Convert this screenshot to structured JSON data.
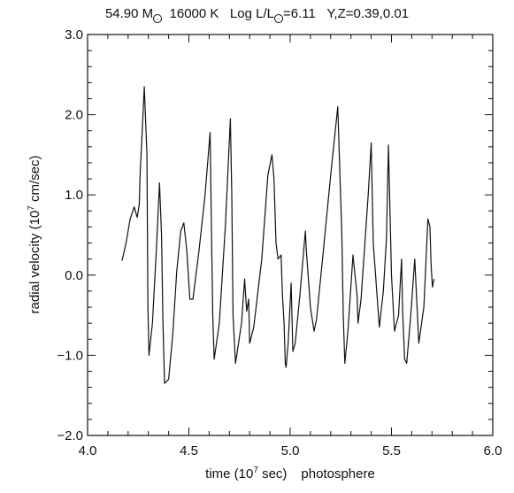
{
  "chart_data": {
    "type": "line",
    "title": {
      "mass": "54.90",
      "mass_symbol": "M",
      "temperature": "16000 K",
      "lum_prefix": "Log L/L",
      "lum_value": "=6.11",
      "composition": "Y,Z=0.39,0.01"
    },
    "xlabel": {
      "main": "time (10",
      "exp": "7",
      "unit": " sec)",
      "suffix": "photosphere"
    },
    "ylabel": {
      "main": "radial velocity (10",
      "exp": "7",
      "unit": " cm/sec)"
    },
    "xlim": [
      4.0,
      6.0
    ],
    "ylim": [
      -2.0,
      3.0
    ],
    "x_ticks": [
      "4.0",
      "4.5",
      "5.0",
      "5.5",
      "6.0"
    ],
    "y_ticks": [
      "3.0",
      "2.0",
      "1.0",
      "0.0",
      "−1.0",
      "−2.0"
    ],
    "grid": false,
    "series": [
      {
        "color": "#111111",
        "x": [
          4.17,
          4.19,
          4.21,
          4.23,
          4.245,
          4.255,
          4.26,
          4.265,
          4.28,
          4.293,
          4.298,
          4.303,
          4.32,
          4.34,
          4.355,
          4.365,
          4.372,
          4.38,
          4.4,
          4.42,
          4.44,
          4.46,
          4.475,
          4.49,
          4.505,
          4.52,
          4.55,
          4.58,
          4.605,
          4.612,
          4.618,
          4.625,
          4.65,
          4.68,
          4.705,
          4.712,
          4.718,
          4.73,
          4.76,
          4.775,
          4.785,
          4.795,
          4.8,
          4.82,
          4.86,
          4.89,
          4.91,
          4.92,
          4.93,
          4.94,
          4.955,
          4.962,
          4.97,
          4.976,
          4.98,
          4.99,
          5.005,
          5.013,
          5.025,
          5.05,
          5.075,
          5.08,
          5.1,
          5.118,
          5.13,
          5.16,
          5.2,
          5.235,
          5.255,
          5.262,
          5.27,
          5.285,
          5.31,
          5.33,
          5.335,
          5.35,
          5.385,
          5.4,
          5.41,
          5.44,
          5.46,
          5.475,
          5.485,
          5.5,
          5.515,
          5.535,
          5.55,
          5.555,
          5.565,
          5.575,
          5.595,
          5.615,
          5.635,
          5.66,
          5.68,
          5.69,
          5.695,
          5.702,
          5.71
        ],
        "y": [
          0.18,
          0.4,
          0.7,
          0.85,
          0.72,
          0.88,
          1.3,
          1.55,
          2.35,
          1.5,
          -0.4,
          -1.0,
          -0.6,
          0.35,
          1.15,
          0.5,
          -0.6,
          -1.35,
          -1.3,
          -0.75,
          0.05,
          0.55,
          0.65,
          0.3,
          -0.3,
          -0.3,
          0.3,
          1.0,
          1.78,
          0.5,
          -0.5,
          -1.05,
          -0.6,
          0.6,
          1.95,
          1.0,
          -0.5,
          -1.1,
          -0.6,
          -0.05,
          -0.45,
          -0.3,
          -0.85,
          -0.65,
          0.2,
          1.25,
          1.5,
          1.2,
          0.4,
          0.2,
          0.25,
          -0.25,
          -0.6,
          -1.1,
          -1.15,
          -0.85,
          -0.1,
          -0.95,
          -0.85,
          -0.2,
          0.55,
          0.3,
          -0.4,
          -0.7,
          -0.55,
          0.2,
          1.25,
          2.1,
          0.5,
          -0.5,
          -1.1,
          -0.7,
          0.25,
          -0.25,
          -0.6,
          -0.3,
          1.0,
          1.65,
          0.4,
          -0.65,
          -0.2,
          0.45,
          1.62,
          0.0,
          -0.7,
          -0.5,
          0.2,
          -0.45,
          -1.05,
          -1.1,
          -0.5,
          0.2,
          -0.85,
          -0.4,
          0.7,
          0.6,
          0.15,
          -0.15,
          -0.05
        ]
      }
    ]
  }
}
